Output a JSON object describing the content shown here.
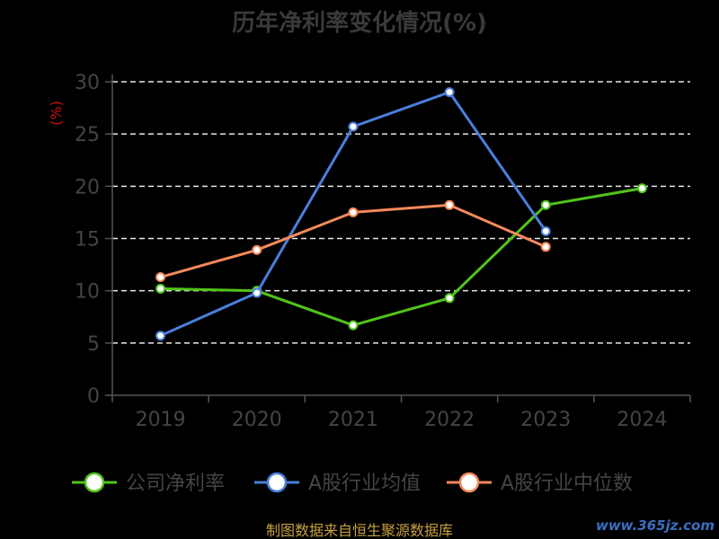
{
  "chart_data": {
    "type": "line",
    "title": "历年净利率变化情况(%)",
    "ylabel": "(%)",
    "categories": [
      "2019",
      "2020",
      "2021",
      "2022",
      "2023",
      "2024"
    ],
    "ylim": [
      0,
      30
    ],
    "yticks": [
      0,
      5,
      10,
      15,
      20,
      25,
      30
    ],
    "grid": true,
    "legend_position": "bottom",
    "series": [
      {
        "name": "公司净利率",
        "color": "#52c41a",
        "values": [
          10.2,
          10.0,
          6.7,
          9.3,
          18.2,
          19.8
        ]
      },
      {
        "name": "A股行业均值",
        "color": "#4a7fdc",
        "values": [
          5.7,
          9.8,
          25.7,
          29.0,
          15.7,
          null
        ]
      },
      {
        "name": "A股行业中位数",
        "color": "#f5895a",
        "values": [
          11.3,
          13.9,
          17.5,
          18.2,
          14.2,
          null
        ]
      }
    ]
  },
  "footer": "制图数据来自恒生聚源数据库",
  "watermark": "www.365jz.com"
}
